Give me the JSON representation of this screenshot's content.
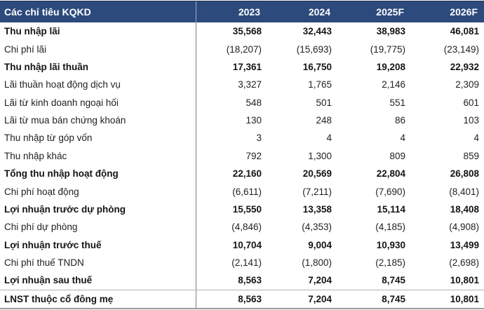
{
  "colors": {
    "header_bg": "#2C4A7C",
    "header_top_border": "#1E3355",
    "header_text": "#FFFFFF",
    "text": "#1F1F1F",
    "text_bold": "#141414",
    "divider": "#7F7F7F",
    "last_row_border": "#B3B3B3",
    "border_bottom": "#9B9B9B"
  },
  "table": {
    "header": {
      "label": "Các chỉ tiêu KQKD",
      "years": [
        "2023",
        "2024",
        "2025F",
        "2026F"
      ]
    },
    "rows": [
      {
        "label": "Thu nhập lãi",
        "bold": true,
        "values": [
          "35,568",
          "32,443",
          "38,983",
          "46,081"
        ]
      },
      {
        "label": "Chi phí lãi",
        "bold": false,
        "values": [
          "(18,207)",
          "(15,693)",
          "(19,775)",
          "(23,149)"
        ]
      },
      {
        "label": "Thu nhập lãi thuần",
        "bold": true,
        "values": [
          "17,361",
          "16,750",
          "19,208",
          "22,932"
        ]
      },
      {
        "label": "Lãi thuần hoạt động dịch vụ",
        "bold": false,
        "values": [
          "3,327",
          "1,765",
          "2,146",
          "2,309"
        ]
      },
      {
        "label": "Lãi từ kinh doanh ngoại hối",
        "bold": false,
        "values": [
          "548",
          "501",
          "551",
          "601"
        ]
      },
      {
        "label": "Lãi từ mua bán chứng khoán",
        "bold": false,
        "values": [
          "130",
          "248",
          "86",
          "103"
        ]
      },
      {
        "label": "Thu nhập từ góp vốn",
        "bold": false,
        "values": [
          "3",
          "4",
          "4",
          "4"
        ]
      },
      {
        "label": "Thu nhập khác",
        "bold": false,
        "values": [
          "792",
          "1,300",
          "809",
          "859"
        ]
      },
      {
        "label": "Tổng thu nhập hoạt động",
        "bold": true,
        "values": [
          "22,160",
          "20,569",
          "22,804",
          "26,808"
        ]
      },
      {
        "label": "Chi phí hoạt động",
        "bold": false,
        "values": [
          "(6,611)",
          "(7,211)",
          "(7,690)",
          "(8,401)"
        ]
      },
      {
        "label": "Lợi nhuận trước dự phòng",
        "bold": true,
        "values": [
          "15,550",
          "13,358",
          "15,114",
          "18,408"
        ]
      },
      {
        "label": "Chi phí dự phòng",
        "bold": false,
        "values": [
          "(4,846)",
          "(4,353)",
          "(4,185)",
          "(4,908)"
        ]
      },
      {
        "label": "Lợi nhuận trước thuế",
        "bold": true,
        "values": [
          "10,704",
          "9,004",
          "10,930",
          "13,499"
        ]
      },
      {
        "label": "Chi phí thuế TNDN",
        "bold": false,
        "values": [
          "(2,141)",
          "(1,800)",
          "(2,185)",
          "(2,698)"
        ]
      },
      {
        "label": "Lợi nhuận sau thuế",
        "bold": true,
        "values": [
          "8,563",
          "7,204",
          "8,745",
          "10,801"
        ]
      },
      {
        "label": "LNST thuộc cổ đông mẹ",
        "bold": true,
        "values": [
          "8,563",
          "7,204",
          "8,745",
          "10,801"
        ]
      }
    ]
  }
}
